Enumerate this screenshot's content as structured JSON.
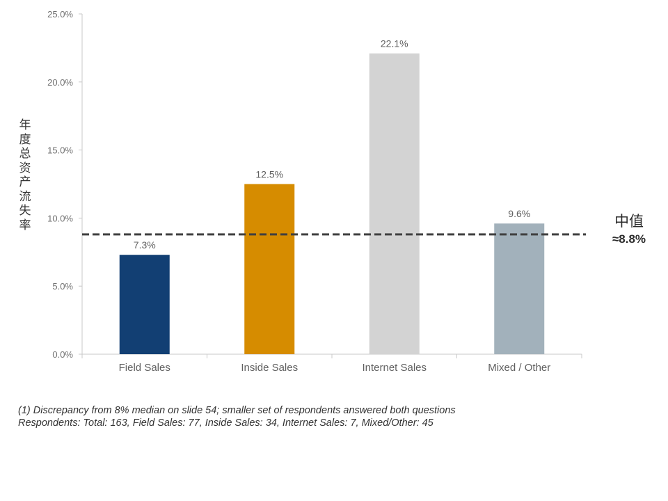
{
  "chart_data": {
    "type": "bar",
    "categories": [
      "Field Sales",
      "Inside Sales",
      "Internet Sales",
      "Mixed / Other"
    ],
    "values": [
      7.3,
      12.5,
      22.1,
      9.6
    ],
    "value_labels": [
      "7.3%",
      "12.5%",
      "22.1%",
      "9.6%"
    ],
    "colors": [
      "#123f73",
      "#d68c00",
      "#d3d3d3",
      "#a2b1bb"
    ],
    "ylabel": "年度总资产流失率",
    "ylim": [
      0,
      25
    ],
    "yticks": [
      0,
      5,
      10,
      15,
      20,
      25
    ],
    "ytick_labels": [
      "0.0%",
      "5.0%",
      "10.0%",
      "15.0%",
      "20.0%",
      "25.0%"
    ],
    "grid": false,
    "reference_line": {
      "value": 8.8,
      "style": "dashed",
      "color": "#404040"
    }
  },
  "annotation": {
    "title": "中值",
    "value": "≈8.8%"
  },
  "footnote": {
    "line1": "(1) Discrepancy from 8% median on slide 54; smaller set of respondents answered both questions",
    "line2": "Respondents: Total: 163, Field Sales: 77, Inside Sales: 34, Internet Sales: 7, Mixed/Other: 45"
  }
}
